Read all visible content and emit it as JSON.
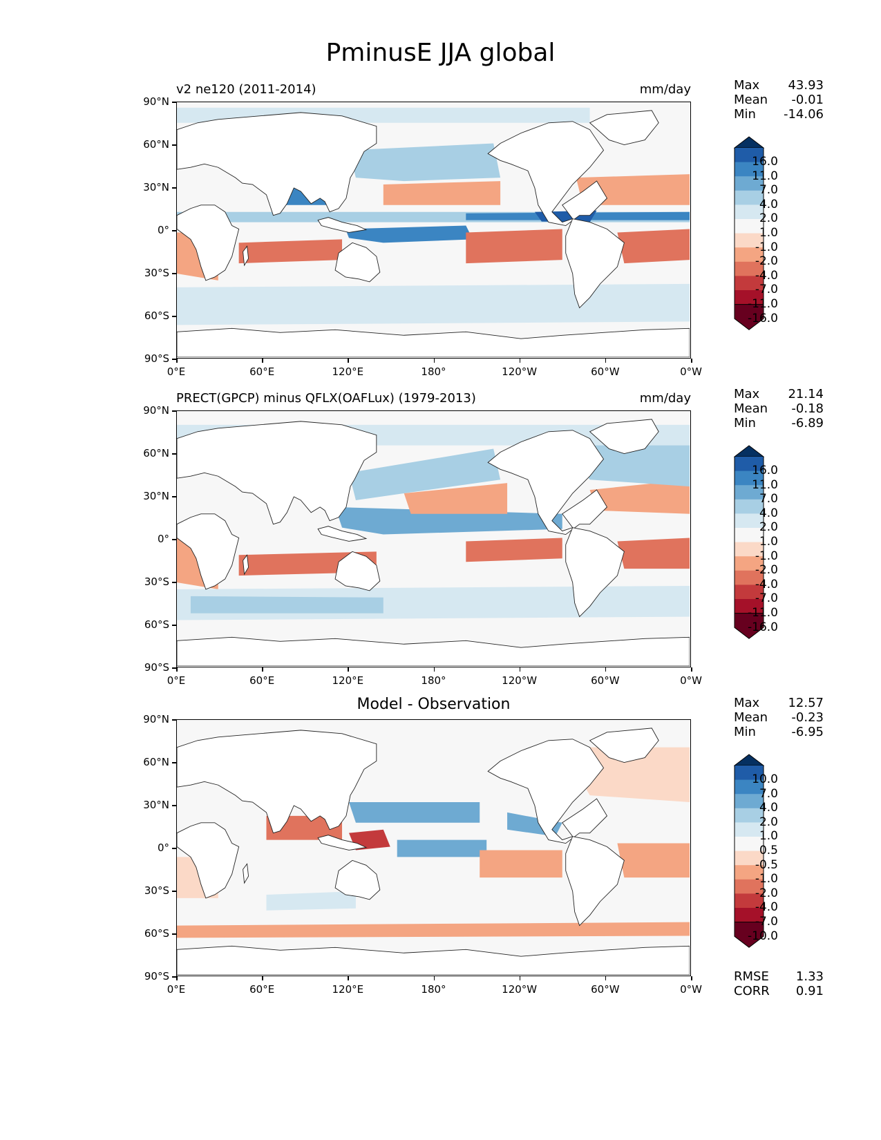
{
  "title": "PminusE JJA global",
  "axis": {
    "lat_labels": [
      "90°N",
      "60°N",
      "30°N",
      "0°",
      "30°S",
      "60°S",
      "90°S"
    ],
    "lon_labels": [
      "0°E",
      "60°E",
      "120°E",
      "180°",
      "120°W",
      "60°W",
      "0°W"
    ]
  },
  "panels": [
    {
      "left_title": "v2 ne120 (2011-2014)",
      "right_title": "mm/day",
      "center_title": "",
      "stats": [
        {
          "label": "Max",
          "value": "43.93"
        },
        {
          "label": "Mean",
          "value": "-0.01"
        },
        {
          "label": "Min",
          "value": "-14.06"
        }
      ],
      "colorbar_labels": [
        "16.0",
        "11.0",
        "7.0",
        "4.0",
        "2.0",
        "1.0",
        "-1.0",
        "-2.0",
        "-4.0",
        "-7.0",
        "-11.0",
        "-16.0"
      ]
    },
    {
      "left_title": "PRECT(GPCP) minus QFLX(OAFLux) (1979-2013)",
      "right_title": "mm/day",
      "center_title": "",
      "stats": [
        {
          "label": "Max",
          "value": "21.14"
        },
        {
          "label": "Mean",
          "value": "-0.18"
        },
        {
          "label": "Min",
          "value": "-6.89"
        }
      ],
      "colorbar_labels": [
        "16.0",
        "11.0",
        "7.0",
        "4.0",
        "2.0",
        "1.0",
        "-1.0",
        "-2.0",
        "-4.0",
        "-7.0",
        "-11.0",
        "-16.0"
      ]
    },
    {
      "left_title": "",
      "right_title": "",
      "center_title": "Model - Observation",
      "stats": [
        {
          "label": "Max",
          "value": "12.57"
        },
        {
          "label": "Mean",
          "value": "-0.23"
        },
        {
          "label": "Min",
          "value": "-6.95"
        }
      ],
      "colorbar_labels": [
        "10.0",
        "7.0",
        "4.0",
        "2.0",
        "1.0",
        "0.5",
        "-0.5",
        "-1.0",
        "-2.0",
        "-4.0",
        "-7.0",
        "-10.0"
      ],
      "metrics": [
        {
          "label": "RMSE",
          "value": "1.33"
        },
        {
          "label": "CORR",
          "value": "0.91"
        }
      ]
    }
  ],
  "colors": {
    "cbar": [
      "#053061",
      "#1f5ca8",
      "#3b85c2",
      "#6eaad2",
      "#a8cfe4",
      "#d6e8f1",
      "#f7f7f7",
      "#fbd9c7",
      "#f4a582",
      "#e0735d",
      "#c33a3c",
      "#a51129",
      "#67001f"
    ],
    "land": "#ffffff",
    "ocean_neutral": "#f7f7f7"
  }
}
